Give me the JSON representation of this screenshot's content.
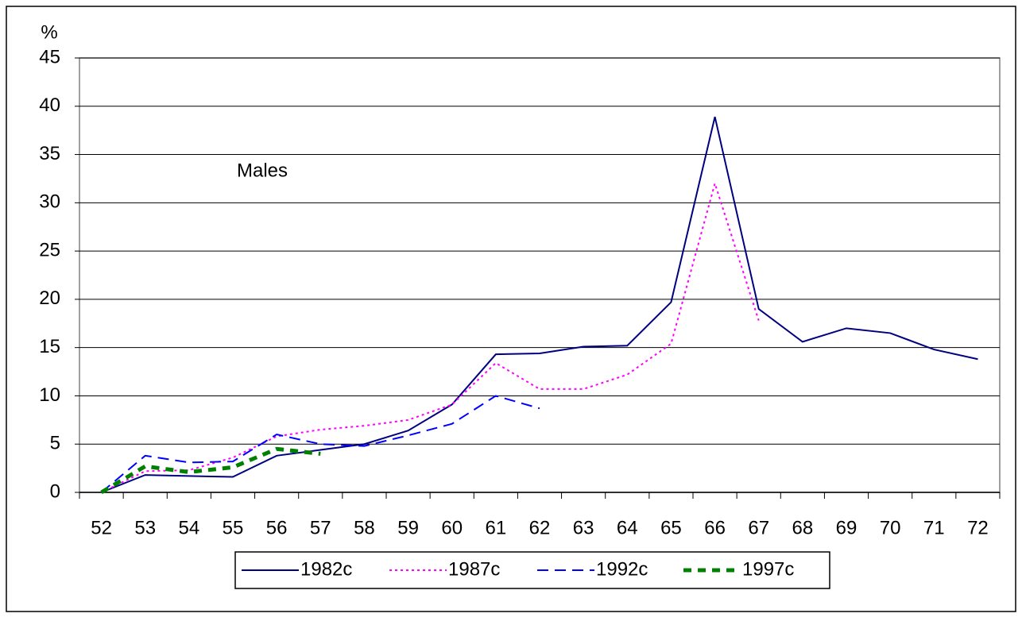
{
  "chart_data": {
    "type": "line",
    "y_label": "%",
    "annotation": "Males",
    "categories": [
      "52",
      "53",
      "54",
      "55",
      "56",
      "57",
      "58",
      "59",
      "60",
      "61",
      "62",
      "63",
      "64",
      "65",
      "66",
      "67",
      "68",
      "69",
      "70",
      "71",
      "72"
    ],
    "series": [
      {
        "name": "1982c",
        "color": "#000080",
        "values": [
          0,
          1.8,
          1.7,
          1.6,
          3.8,
          4.4,
          5.0,
          6.4,
          9.1,
          14.3,
          14.4,
          15.1,
          15.2,
          19.7,
          38.9,
          19.0,
          15.6,
          17.0,
          16.5,
          14.8,
          13.8
        ]
      },
      {
        "name": "1987c",
        "color": "#ff00ff",
        "values": [
          0,
          2.2,
          2.3,
          3.6,
          5.8,
          6.5,
          6.9,
          7.5,
          9.1,
          13.4,
          10.7,
          10.7,
          12.2,
          15.4,
          32.0,
          17.8,
          null,
          null,
          null,
          null,
          null
        ]
      },
      {
        "name": "1992c",
        "color": "#0000ff",
        "values": [
          0,
          3.8,
          3.1,
          3.2,
          6.0,
          5.0,
          4.8,
          5.9,
          7.1,
          10.0,
          8.7,
          null,
          null,
          null,
          null,
          null,
          null,
          null,
          null,
          null,
          null
        ]
      },
      {
        "name": "1997c",
        "color": "#008000",
        "values": [
          0,
          2.7,
          2.1,
          2.6,
          4.5,
          4.0,
          null,
          null,
          null,
          null,
          null,
          null,
          null,
          null,
          null,
          null,
          null,
          null,
          null,
          null,
          null
        ]
      }
    ],
    "ylim": [
      0,
      45
    ],
    "yticks": [
      0,
      5,
      10,
      15,
      20,
      25,
      30,
      35,
      40,
      45
    ],
    "grid": true
  }
}
